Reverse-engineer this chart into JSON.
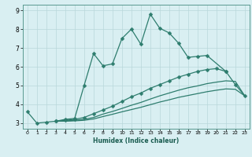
{
  "xlabel": "Humidex (Indice chaleur)",
  "bg_color": "#d9eff2",
  "grid_color": "#b8d8db",
  "line_color": "#2e7d6e",
  "xlim": [
    -0.5,
    23.5
  ],
  "ylim": [
    2.7,
    9.3
  ],
  "xticks": [
    0,
    1,
    2,
    3,
    4,
    5,
    6,
    7,
    8,
    9,
    10,
    11,
    12,
    13,
    14,
    15,
    16,
    17,
    18,
    19,
    20,
    21,
    22,
    23
  ],
  "yticks": [
    3,
    4,
    5,
    6,
    7,
    8,
    9
  ],
  "series": [
    {
      "x": [
        0,
        1,
        2,
        3,
        4,
        5,
        6,
        7,
        8,
        9,
        10,
        11,
        12,
        13,
        14,
        15,
        16,
        17,
        18,
        19,
        21
      ],
      "y": [
        3.6,
        3.0,
        3.05,
        3.1,
        3.2,
        3.25,
        5.0,
        6.7,
        6.05,
        6.15,
        7.5,
        8.0,
        7.2,
        8.8,
        8.05,
        7.8,
        7.25,
        6.5,
        6.55,
        6.6,
        5.75
      ],
      "marker": "D",
      "linestyle": "-",
      "markersize": 2.5,
      "linewidth": 0.9
    },
    {
      "x": [
        3,
        4,
        5,
        6,
        7,
        8,
        9,
        10,
        11,
        12,
        13,
        14,
        15,
        16,
        17,
        18,
        19,
        20,
        21,
        22,
        23
      ],
      "y": [
        3.1,
        3.15,
        3.2,
        3.3,
        3.5,
        3.7,
        3.9,
        4.15,
        4.4,
        4.6,
        4.85,
        5.05,
        5.25,
        5.45,
        5.6,
        5.75,
        5.85,
        5.9,
        5.75,
        5.05,
        4.45
      ],
      "marker": "D",
      "linestyle": "-",
      "markersize": 2.5,
      "linewidth": 0.9
    },
    {
      "x": [
        3,
        4,
        5,
        6,
        7,
        8,
        9,
        10,
        11,
        12,
        13,
        14,
        15,
        16,
        17,
        18,
        19,
        20,
        21,
        22,
        23
      ],
      "y": [
        3.1,
        3.12,
        3.15,
        3.2,
        3.3,
        3.48,
        3.62,
        3.78,
        3.95,
        4.1,
        4.28,
        4.45,
        4.6,
        4.75,
        4.88,
        4.98,
        5.1,
        5.18,
        5.25,
        5.22,
        4.45
      ],
      "marker": null,
      "linestyle": "-",
      "markersize": 0,
      "linewidth": 0.9
    },
    {
      "x": [
        3,
        4,
        5,
        6,
        7,
        8,
        9,
        10,
        11,
        12,
        13,
        14,
        15,
        16,
        17,
        18,
        19,
        20,
        21,
        22,
        23
      ],
      "y": [
        3.1,
        3.1,
        3.12,
        3.15,
        3.22,
        3.35,
        3.47,
        3.6,
        3.72,
        3.84,
        3.98,
        4.12,
        4.24,
        4.37,
        4.47,
        4.57,
        4.67,
        4.75,
        4.82,
        4.8,
        4.45
      ],
      "marker": null,
      "linestyle": "-",
      "markersize": 0,
      "linewidth": 0.9
    }
  ]
}
